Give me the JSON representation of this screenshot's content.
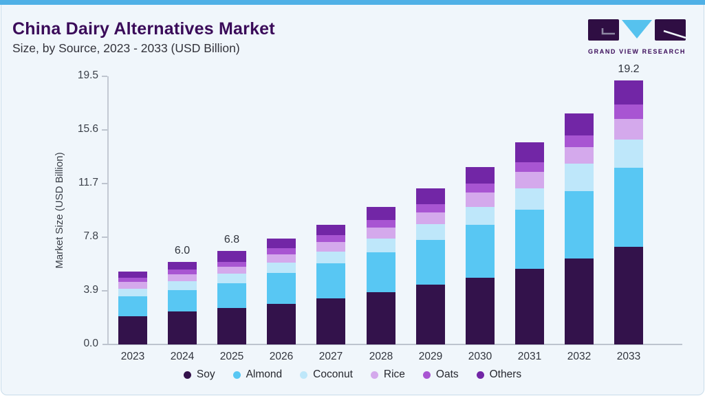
{
  "header": {
    "title": "China Dairy Alternatives Market",
    "subtitle": "Size, by Source, 2023 - 2033 (USD Billion)"
  },
  "logo": {
    "text": "GRAND VIEW RESEARCH",
    "mark_dark": "#2F0E43",
    "mark_blue": "#56C2EE"
  },
  "theme": {
    "accent_bar": "#4FB0E6",
    "card_background": "#F0F6FB",
    "card_border": "#C8DCEA",
    "title_color": "#3A0B59",
    "axis_color": "#BDC4CE"
  },
  "chart_data": {
    "type": "bar",
    "stacked": true,
    "title": "China Dairy Alternatives Market Size, by Source, 2023 - 2033 (USD Billion)",
    "ylabel": "Market Size (USD Billion)",
    "xlabel": "",
    "ylim": [
      0,
      19.5
    ],
    "yticks": [
      0.0,
      3.9,
      7.8,
      11.7,
      15.6,
      19.5
    ],
    "ytick_labels": [
      "0.0",
      "3.9",
      "7.8",
      "11.7",
      "15.6",
      "19.5"
    ],
    "grid": false,
    "legend_position": "bottom",
    "categories": [
      "2023",
      "2024",
      "2025",
      "2026",
      "2027",
      "2028",
      "2029",
      "2030",
      "2031",
      "2032",
      "2033"
    ],
    "series": [
      {
        "name": "Soy",
        "color": "#33124B",
        "values": [
          2.05,
          2.4,
          2.66,
          2.97,
          3.37,
          3.82,
          4.37,
          4.87,
          5.48,
          6.23,
          7.09
        ]
      },
      {
        "name": "Almond",
        "color": "#58C7F3",
        "values": [
          1.45,
          1.57,
          1.81,
          2.21,
          2.51,
          2.86,
          3.22,
          3.82,
          4.32,
          4.92,
          5.78
        ]
      },
      {
        "name": "Coconut",
        "color": "#BEE7FA",
        "values": [
          0.55,
          0.64,
          0.7,
          0.75,
          0.85,
          1.0,
          1.16,
          1.31,
          1.56,
          2.01,
          2.01
        ]
      },
      {
        "name": "Rice",
        "color": "#D4A9EC",
        "values": [
          0.5,
          0.5,
          0.5,
          0.6,
          0.7,
          0.8,
          0.85,
          1.06,
          1.21,
          1.21,
          1.51
        ]
      },
      {
        "name": "Oats",
        "color": "#A855D2",
        "values": [
          0.3,
          0.36,
          0.35,
          0.45,
          0.5,
          0.55,
          0.6,
          0.65,
          0.7,
          0.85,
          1.06
        ]
      },
      {
        "name": "Others",
        "color": "#7226A6",
        "values": [
          0.45,
          0.53,
          0.78,
          0.72,
          0.77,
          0.97,
          1.16,
          1.21,
          1.41,
          1.56,
          1.76
        ]
      }
    ],
    "totals": [
      5.3,
      6.0,
      6.8,
      7.7,
      8.7,
      10.0,
      11.4,
      12.9,
      14.7,
      16.8,
      19.2
    ],
    "bar_total_labels": {
      "2024": "6.0",
      "2025": "6.8",
      "2033": "19.2"
    }
  }
}
